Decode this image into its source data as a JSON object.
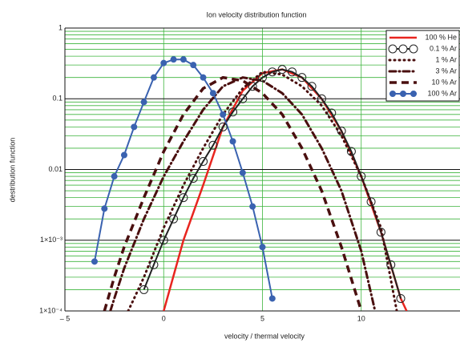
{
  "chart_data": {
    "type": "line",
    "title": "Ion velocity distribution function",
    "x_label": "velocity / thermal velocity",
    "y_label": "destribution function",
    "log_y": true,
    "grid": true,
    "legend": "upper right",
    "xlim": [
      -5,
      15
    ],
    "xticks": [
      {
        "value": -5,
        "label": "– 5"
      },
      0,
      5,
      10
    ],
    "ylim": [
      0.0001,
      1
    ],
    "yticks": [
      {
        "value": 0.0001,
        "label": "1×10⁻⁴"
      },
      {
        "value": 0.001,
        "label": "1×10⁻³"
      },
      0.01,
      0.1,
      1
    ],
    "yminorticks": [
      0.0002,
      0.0003,
      0.0004,
      0.0005,
      0.0006,
      0.0007,
      0.0008,
      0.0009,
      0.002,
      0.003,
      0.004,
      0.005,
      0.006,
      0.007,
      0.008,
      0.009,
      0.02,
      0.03,
      0.04,
      0.05,
      0.06,
      0.07,
      0.08,
      0.09,
      0.2,
      0.3,
      0.4,
      0.5,
      0.6,
      0.7,
      0.8,
      0.9
    ],
    "series": [
      {
        "name": "100 % He",
        "color": "#e8251f",
        "style": "solid",
        "marker": "none",
        "x": [
          0,
          1,
          2,
          3,
          4,
          5,
          6,
          7,
          8,
          9,
          10,
          11,
          12,
          12.3
        ],
        "values": [
          0.0001,
          0.001,
          0.006,
          0.04,
          0.13,
          0.23,
          0.26,
          0.2,
          0.1,
          0.035,
          0.008,
          0.0013,
          0.00015,
          0.0001
        ]
      },
      {
        "name": "0.1 %  Ar",
        "color": "#222222",
        "style": "solid",
        "marker": "open-circle",
        "x": [
          -1,
          -0.5,
          0,
          0.5,
          1,
          1.5,
          2,
          2.5,
          3,
          3.5,
          4,
          4.5,
          5,
          5.5,
          6,
          6.5,
          7,
          7.5,
          8,
          8.5,
          9,
          9.5,
          10,
          10.5,
          11,
          11.5,
          12
        ],
        "values": [
          0.0002,
          0.00045,
          0.001,
          0.002,
          0.004,
          0.0075,
          0.013,
          0.022,
          0.04,
          0.065,
          0.1,
          0.15,
          0.2,
          0.24,
          0.26,
          0.24,
          0.2,
          0.15,
          0.1,
          0.063,
          0.035,
          0.018,
          0.008,
          0.0035,
          0.0013,
          0.00045,
          0.00015
        ]
      },
      {
        "name": "1 %  Ar",
        "color": "#4a0f0f",
        "style": "dot",
        "marker": "none",
        "x": [
          -1.8,
          -1.5,
          -1,
          0,
          1,
          2,
          3,
          4,
          5,
          6,
          7,
          8,
          9,
          10,
          11,
          11.8
        ],
        "values": [
          0.0001,
          0.00015,
          0.0003,
          0.0015,
          0.006,
          0.02,
          0.06,
          0.14,
          0.24,
          0.22,
          0.15,
          0.08,
          0.03,
          0.008,
          0.0015,
          0.0001
        ]
      },
      {
        "name": "3 %  Ar",
        "color": "#4a0f0f",
        "style": "dashdot",
        "marker": "none",
        "x": [
          -2.7,
          -2.5,
          -2,
          -1,
          0,
          1,
          2,
          3,
          4,
          5,
          6,
          7,
          8,
          9,
          10,
          10.7
        ],
        "values": [
          0.0001,
          0.00015,
          0.0004,
          0.002,
          0.008,
          0.025,
          0.07,
          0.15,
          0.2,
          0.18,
          0.12,
          0.06,
          0.02,
          0.005,
          0.0007,
          0.0001
        ]
      },
      {
        "name": "10 %  Ar",
        "color": "#4a0f0f",
        "style": "dash",
        "marker": "none",
        "x": [
          -3,
          -2.5,
          -2,
          -1,
          0,
          1,
          2,
          3,
          4,
          5,
          6,
          7,
          8,
          9,
          10
        ],
        "values": [
          0.0001,
          0.0003,
          0.0008,
          0.004,
          0.018,
          0.06,
          0.14,
          0.2,
          0.18,
          0.12,
          0.06,
          0.02,
          0.005,
          0.0008,
          0.0001
        ]
      },
      {
        "name": "100 %  Ar",
        "color": "#3a62b0",
        "style": "solid",
        "marker": "filled-circle",
        "x": [
          -3.5,
          -3,
          -2.5,
          -2,
          -1.5,
          -1,
          -0.5,
          0,
          0.5,
          1,
          1.5,
          2,
          2.5,
          3,
          3.5,
          4,
          4.5,
          5,
          5.5
        ],
        "values": [
          0.0005,
          0.0028,
          0.008,
          0.016,
          0.04,
          0.09,
          0.2,
          0.32,
          0.36,
          0.36,
          0.3,
          0.2,
          0.12,
          0.06,
          0.025,
          0.009,
          0.003,
          0.0008,
          0.00015
        ]
      }
    ]
  }
}
